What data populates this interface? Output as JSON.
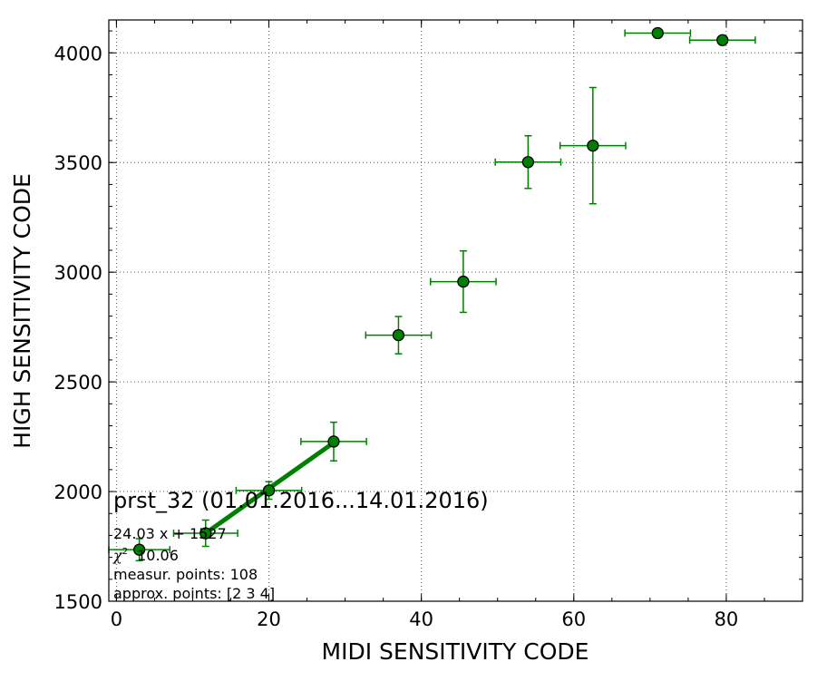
{
  "chart_data": {
    "type": "scatter",
    "title": "prst_32 (01.01.2016...14.01.2016)",
    "xlabel": "MIDI SENSITIVITY CODE",
    "ylabel": "HIGH SENSITIVITY CODE",
    "xlim": [
      -1,
      90
    ],
    "ylim": [
      1500,
      4150
    ],
    "xticks": [
      0,
      20,
      40,
      60,
      80
    ],
    "yticks": [
      1500,
      2000,
      2500,
      3000,
      3500,
      4000
    ],
    "x_minor_step": 5,
    "y_minor_step": 100,
    "grid": true,
    "color": "#008000",
    "points": [
      {
        "x": 3.0,
        "y": 1735,
        "xerr": 4.0,
        "yerr": 50
      },
      {
        "x": 11.7,
        "y": 1810,
        "xerr": 4.2,
        "yerr": 60
      },
      {
        "x": 20.0,
        "y": 2005,
        "xerr": 4.3,
        "yerr": 40
      },
      {
        "x": 28.5,
        "y": 2228,
        "xerr": 4.3,
        "yerr": 88
      },
      {
        "x": 37.0,
        "y": 2713,
        "xerr": 4.3,
        "yerr": 85
      },
      {
        "x": 45.5,
        "y": 2957,
        "xerr": 4.3,
        "yerr": 140
      },
      {
        "x": 54.0,
        "y": 3502,
        "xerr": 4.3,
        "yerr": 120
      },
      {
        "x": 62.5,
        "y": 3577,
        "xerr": 4.3,
        "yerr": 265
      },
      {
        "x": 71.0,
        "y": 4090,
        "xerr": 4.3,
        "yerr": 0
      },
      {
        "x": 79.5,
        "y": 4058,
        "xerr": 4.3,
        "yerr": 0
      }
    ],
    "fit_line": {
      "x": [
        11.7,
        28.5
      ],
      "y": [
        1810,
        2223
      ]
    },
    "annotations": {
      "fit": "24.03 x + 1527",
      "chi_symbol": "χ",
      "chi_exp": "2",
      "chi_value": "10.06",
      "measured": "measur. points: 108",
      "approx": "approx. points: [2 3 4]"
    }
  }
}
